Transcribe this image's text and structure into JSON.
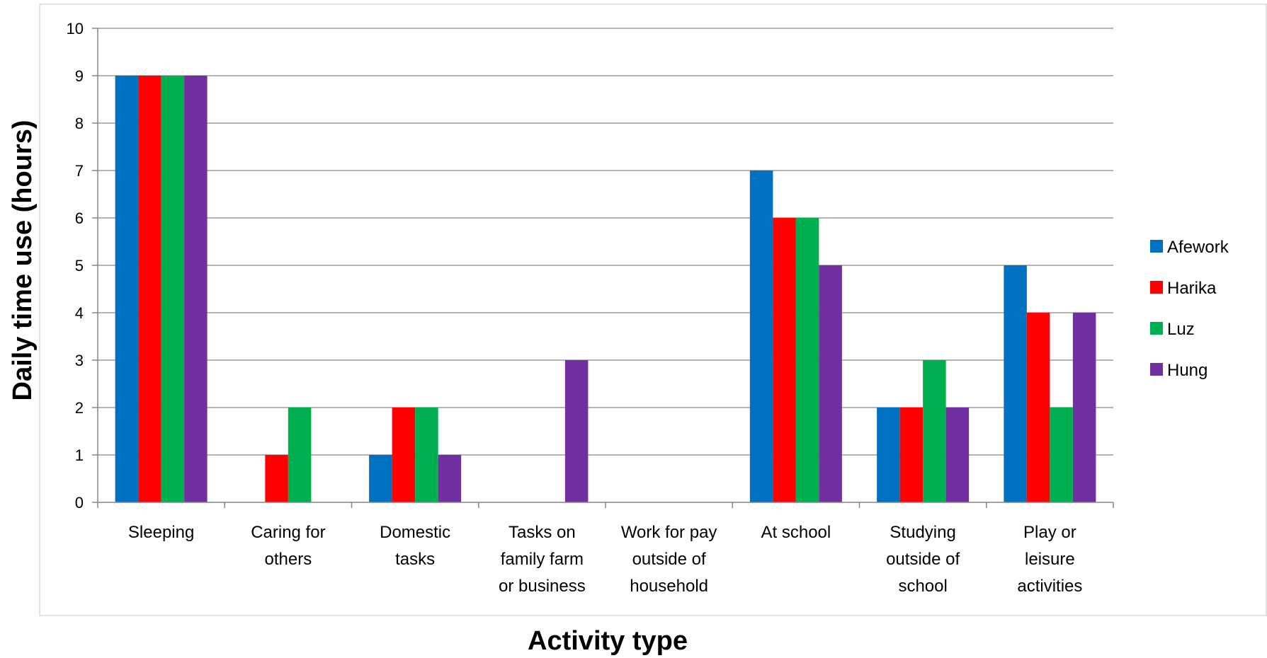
{
  "chart_data": {
    "type": "bar",
    "title": "",
    "xlabel": "Activity type",
    "ylabel": "Daily time use (hours)",
    "ylim": [
      0,
      10
    ],
    "yticks": [
      0,
      1,
      2,
      3,
      4,
      5,
      6,
      7,
      8,
      9,
      10
    ],
    "grid": true,
    "legend_position": "right",
    "categories": [
      [
        "Sleeping"
      ],
      [
        "Caring for",
        "others"
      ],
      [
        "Domestic",
        "tasks"
      ],
      [
        "Tasks on",
        "family farm",
        "or business"
      ],
      [
        "Work for pay",
        "outside of",
        "household"
      ],
      [
        "At school"
      ],
      [
        "Studying",
        "outside of",
        "school"
      ],
      [
        "Play or",
        "leisure",
        "activities"
      ]
    ],
    "series": [
      {
        "name": "Afework",
        "color": "#0070C0",
        "values": [
          9,
          0,
          1,
          0,
          0,
          7,
          2,
          5
        ]
      },
      {
        "name": "Harika",
        "color": "#FF0000",
        "values": [
          9,
          1,
          2,
          0,
          0,
          6,
          2,
          4
        ]
      },
      {
        "name": "Luz",
        "color": "#00B050",
        "values": [
          9,
          2,
          2,
          0,
          0,
          6,
          3,
          2
        ]
      },
      {
        "name": "Hung",
        "color": "#7030A0",
        "values": [
          9,
          0,
          1,
          3,
          0,
          5,
          2,
          4
        ]
      }
    ]
  }
}
